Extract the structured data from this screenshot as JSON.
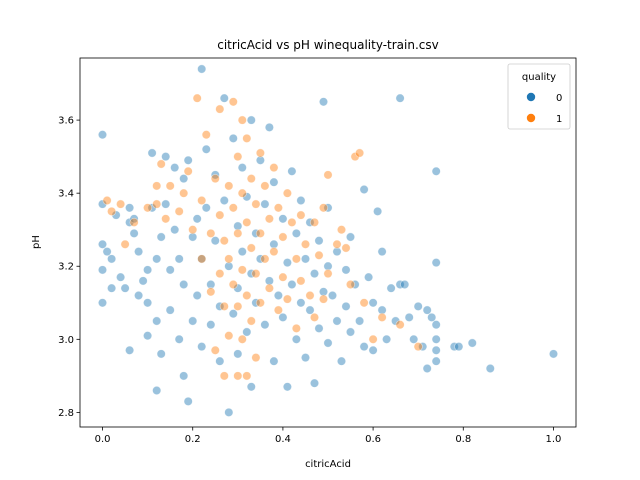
{
  "chart_data": {
    "type": "scatter",
    "title": "citricAcid vs pH winequality-train.csv",
    "xlabel": "citricAcid",
    "ylabel": "pH",
    "xlim": [
      -0.05,
      1.05
    ],
    "ylim": [
      2.76,
      3.77
    ],
    "xticks": [
      0.0,
      0.2,
      0.4,
      0.6,
      0.8,
      1.0
    ],
    "xtick_labels": [
      "0.0",
      "0.2",
      "0.4",
      "0.6",
      "0.8",
      "1.0"
    ],
    "yticks": [
      2.8,
      3.0,
      3.2,
      3.4,
      3.6
    ],
    "ytick_labels": [
      "2.8",
      "3.0",
      "3.2",
      "3.4",
      "3.6"
    ],
    "grid": false,
    "legend": {
      "title": "quality",
      "position": "top-right",
      "entries": [
        {
          "label": "0",
          "color": "#1f77b4"
        },
        {
          "label": "1",
          "color": "#ff7f0e"
        }
      ]
    },
    "marker_opacity": 0.45,
    "series": [
      {
        "name": "0",
        "color": "#1f77b4",
        "points": [
          [
            0.0,
            3.56
          ],
          [
            0.0,
            3.37
          ],
          [
            0.0,
            3.26
          ],
          [
            0.0,
            3.19
          ],
          [
            0.0,
            3.1
          ],
          [
            0.01,
            3.24
          ],
          [
            0.02,
            3.22
          ],
          [
            0.02,
            3.14
          ],
          [
            0.03,
            3.34
          ],
          [
            0.04,
            3.17
          ],
          [
            0.05,
            3.14
          ],
          [
            0.06,
            3.36
          ],
          [
            0.06,
            3.32
          ],
          [
            0.06,
            2.97
          ],
          [
            0.07,
            3.33
          ],
          [
            0.07,
            3.29
          ],
          [
            0.08,
            3.24
          ],
          [
            0.08,
            3.12
          ],
          [
            0.09,
            3.16
          ],
          [
            0.1,
            3.19
          ],
          [
            0.1,
            3.1
          ],
          [
            0.1,
            3.01
          ],
          [
            0.11,
            3.51
          ],
          [
            0.11,
            3.36
          ],
          [
            0.12,
            3.22
          ],
          [
            0.12,
            3.05
          ],
          [
            0.12,
            2.86
          ],
          [
            0.13,
            3.28
          ],
          [
            0.13,
            2.96
          ],
          [
            0.14,
            3.5
          ],
          [
            0.14,
            3.37
          ],
          [
            0.15,
            3.19
          ],
          [
            0.15,
            3.08
          ],
          [
            0.16,
            3.47
          ],
          [
            0.16,
            3.3
          ],
          [
            0.17,
            3.22
          ],
          [
            0.17,
            3.0
          ],
          [
            0.18,
            3.44
          ],
          [
            0.18,
            3.15
          ],
          [
            0.18,
            2.9
          ],
          [
            0.19,
            3.49
          ],
          [
            0.19,
            2.83
          ],
          [
            0.2,
            3.28
          ],
          [
            0.2,
            3.05
          ],
          [
            0.21,
            3.33
          ],
          [
            0.21,
            3.12
          ],
          [
            0.22,
            3.74
          ],
          [
            0.22,
            3.22
          ],
          [
            0.22,
            2.98
          ],
          [
            0.23,
            3.52
          ],
          [
            0.23,
            3.36
          ],
          [
            0.24,
            3.15
          ],
          [
            0.24,
            3.04
          ],
          [
            0.25,
            3.45
          ],
          [
            0.25,
            3.27
          ],
          [
            0.26,
            3.09
          ],
          [
            0.26,
            2.94
          ],
          [
            0.27,
            3.66
          ],
          [
            0.27,
            3.38
          ],
          [
            0.28,
            3.2
          ],
          [
            0.28,
            2.8
          ],
          [
            0.29,
            3.55
          ],
          [
            0.29,
            3.07
          ],
          [
            0.3,
            3.31
          ],
          [
            0.3,
            3.14
          ],
          [
            0.3,
            2.96
          ],
          [
            0.31,
            3.47
          ],
          [
            0.31,
            3.24
          ],
          [
            0.32,
            3.39
          ],
          [
            0.32,
            3.02
          ],
          [
            0.33,
            3.6
          ],
          [
            0.33,
            3.18
          ],
          [
            0.33,
            2.87
          ],
          [
            0.34,
            3.29
          ],
          [
            0.34,
            3.1
          ],
          [
            0.35,
            3.49
          ],
          [
            0.35,
            3.22
          ],
          [
            0.36,
            3.37
          ],
          [
            0.36,
            3.04
          ],
          [
            0.37,
            3.58
          ],
          [
            0.37,
            3.16
          ],
          [
            0.38,
            3.43
          ],
          [
            0.38,
            3.26
          ],
          [
            0.38,
            2.94
          ],
          [
            0.39,
            3.12
          ],
          [
            0.4,
            3.33
          ],
          [
            0.4,
            3.06
          ],
          [
            0.41,
            3.21
          ],
          [
            0.41,
            2.87
          ],
          [
            0.42,
            3.46
          ],
          [
            0.42,
            3.15
          ],
          [
            0.43,
            3.29
          ],
          [
            0.43,
            3.0
          ],
          [
            0.44,
            3.38
          ],
          [
            0.44,
            3.1
          ],
          [
            0.45,
            3.22
          ],
          [
            0.45,
            2.95
          ],
          [
            0.46,
            3.32
          ],
          [
            0.46,
            3.08
          ],
          [
            0.47,
            3.18
          ],
          [
            0.47,
            2.88
          ],
          [
            0.48,
            3.27
          ],
          [
            0.48,
            3.03
          ],
          [
            0.49,
            3.65
          ],
          [
            0.49,
            3.13
          ],
          [
            0.5,
            3.36
          ],
          [
            0.5,
            3.2
          ],
          [
            0.5,
            2.99
          ],
          [
            0.51,
            3.12
          ],
          [
            0.52,
            3.24
          ],
          [
            0.52,
            3.05
          ],
          [
            0.53,
            2.94
          ],
          [
            0.54,
            3.19
          ],
          [
            0.54,
            3.09
          ],
          [
            0.55,
            3.28
          ],
          [
            0.55,
            3.02
          ],
          [
            0.56,
            3.15
          ],
          [
            0.57,
            3.05
          ],
          [
            0.58,
            3.41
          ],
          [
            0.58,
            2.98
          ],
          [
            0.59,
            3.17
          ],
          [
            0.6,
            3.1
          ],
          [
            0.6,
            2.97
          ],
          [
            0.61,
            3.35
          ],
          [
            0.62,
            3.24
          ],
          [
            0.62,
            3.08
          ],
          [
            0.63,
            3.0
          ],
          [
            0.64,
            3.14
          ],
          [
            0.65,
            3.05
          ],
          [
            0.66,
            3.66
          ],
          [
            0.66,
            3.15
          ],
          [
            0.67,
            3.15
          ],
          [
            0.68,
            3.06
          ],
          [
            0.69,
            3.0
          ],
          [
            0.7,
            3.09
          ],
          [
            0.71,
            2.98
          ],
          [
            0.72,
            3.08
          ],
          [
            0.72,
            2.92
          ],
          [
            0.73,
            3.06
          ],
          [
            0.74,
            3.46
          ],
          [
            0.74,
            3.21
          ],
          [
            0.74,
            3.04
          ],
          [
            0.74,
            3.0
          ],
          [
            0.74,
            2.97
          ],
          [
            0.74,
            2.94
          ],
          [
            0.78,
            2.98
          ],
          [
            0.79,
            2.98
          ],
          [
            0.82,
            2.99
          ],
          [
            0.86,
            2.92
          ],
          [
            1.0,
            2.96
          ]
        ]
      },
      {
        "name": "1",
        "color": "#ff7f0e",
        "points": [
          [
            0.01,
            3.38
          ],
          [
            0.02,
            3.35
          ],
          [
            0.04,
            3.37
          ],
          [
            0.05,
            3.26
          ],
          [
            0.07,
            3.32
          ],
          [
            0.1,
            3.36
          ],
          [
            0.12,
            3.42
          ],
          [
            0.12,
            3.37
          ],
          [
            0.13,
            3.48
          ],
          [
            0.14,
            3.33
          ],
          [
            0.15,
            3.42
          ],
          [
            0.17,
            3.35
          ],
          [
            0.18,
            3.4
          ],
          [
            0.19,
            3.46
          ],
          [
            0.2,
            3.3
          ],
          [
            0.21,
            3.66
          ],
          [
            0.22,
            3.38
          ],
          [
            0.22,
            3.22
          ],
          [
            0.23,
            3.56
          ],
          [
            0.24,
            3.29
          ],
          [
            0.24,
            3.13
          ],
          [
            0.25,
            3.44
          ],
          [
            0.25,
            2.97
          ],
          [
            0.26,
            3.63
          ],
          [
            0.26,
            3.34
          ],
          [
            0.26,
            3.18
          ],
          [
            0.27,
            3.27
          ],
          [
            0.27,
            3.09
          ],
          [
            0.27,
            2.9
          ],
          [
            0.28,
            3.42
          ],
          [
            0.28,
            3.22
          ],
          [
            0.28,
            3.01
          ],
          [
            0.29,
            3.65
          ],
          [
            0.29,
            3.36
          ],
          [
            0.29,
            3.15
          ],
          [
            0.3,
            3.5
          ],
          [
            0.3,
            3.29
          ],
          [
            0.3,
            3.09
          ],
          [
            0.3,
            2.9
          ],
          [
            0.31,
            3.6
          ],
          [
            0.31,
            3.4
          ],
          [
            0.31,
            3.19
          ],
          [
            0.31,
            3.0
          ],
          [
            0.32,
            3.55
          ],
          [
            0.32,
            3.32
          ],
          [
            0.32,
            3.12
          ],
          [
            0.32,
            2.9
          ],
          [
            0.33,
            3.44
          ],
          [
            0.33,
            3.25
          ],
          [
            0.33,
            3.05
          ],
          [
            0.34,
            3.37
          ],
          [
            0.34,
            3.18
          ],
          [
            0.34,
            2.95
          ],
          [
            0.35,
            3.51
          ],
          [
            0.35,
            3.29
          ],
          [
            0.35,
            3.1
          ],
          [
            0.36,
            3.42
          ],
          [
            0.36,
            3.22
          ],
          [
            0.37,
            3.33
          ],
          [
            0.37,
            3.14
          ],
          [
            0.38,
            3.47
          ],
          [
            0.38,
            3.24
          ],
          [
            0.39,
            3.36
          ],
          [
            0.39,
            3.08
          ],
          [
            0.4,
            3.28
          ],
          [
            0.4,
            3.17
          ],
          [
            0.41,
            3.4
          ],
          [
            0.41,
            3.11
          ],
          [
            0.42,
            3.32
          ],
          [
            0.43,
            3.22
          ],
          [
            0.43,
            3.03
          ],
          [
            0.44,
            3.34
          ],
          [
            0.44,
            3.16
          ],
          [
            0.45,
            3.26
          ],
          [
            0.46,
            3.12
          ],
          [
            0.47,
            3.32
          ],
          [
            0.47,
            3.06
          ],
          [
            0.48,
            3.23
          ],
          [
            0.49,
            3.36
          ],
          [
            0.49,
            3.11
          ],
          [
            0.5,
            3.45
          ],
          [
            0.5,
            3.18
          ],
          [
            0.52,
            3.26
          ],
          [
            0.53,
            3.3
          ],
          [
            0.54,
            3.25
          ],
          [
            0.55,
            3.15
          ],
          [
            0.56,
            3.5
          ],
          [
            0.57,
            3.51
          ],
          [
            0.58,
            3.1
          ],
          [
            0.6,
            3.0
          ],
          [
            0.62,
            3.06
          ],
          [
            0.66,
            3.04
          ],
          [
            0.7,
            2.98
          ]
        ]
      }
    ]
  }
}
